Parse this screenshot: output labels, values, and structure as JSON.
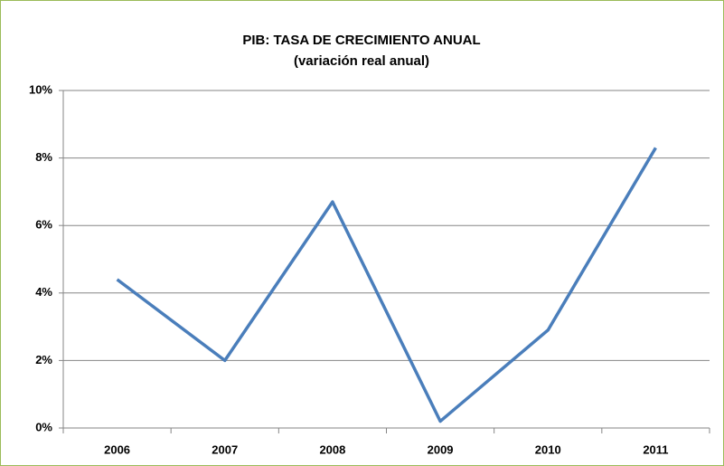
{
  "chart_data": {
    "type": "line",
    "title": "PIB: TASA DE CRECIMIENTO ANUAL",
    "subtitle": "(variación real anual)",
    "categories": [
      "2006",
      "2007",
      "2008",
      "2009",
      "2010",
      "2011"
    ],
    "values": [
      4.4,
      2.0,
      6.7,
      0.2,
      2.9,
      8.3
    ],
    "color": "#4a7ebb",
    "ylim": [
      0,
      10
    ],
    "yticks": [
      {
        "value": 0,
        "label": "0%"
      },
      {
        "value": 2,
        "label": "2%"
      },
      {
        "value": 4,
        "label": "4%"
      },
      {
        "value": 6,
        "label": "6%"
      },
      {
        "value": 8,
        "label": "8%"
      },
      {
        "value": 10,
        "label": "10%"
      }
    ],
    "grid": true
  }
}
